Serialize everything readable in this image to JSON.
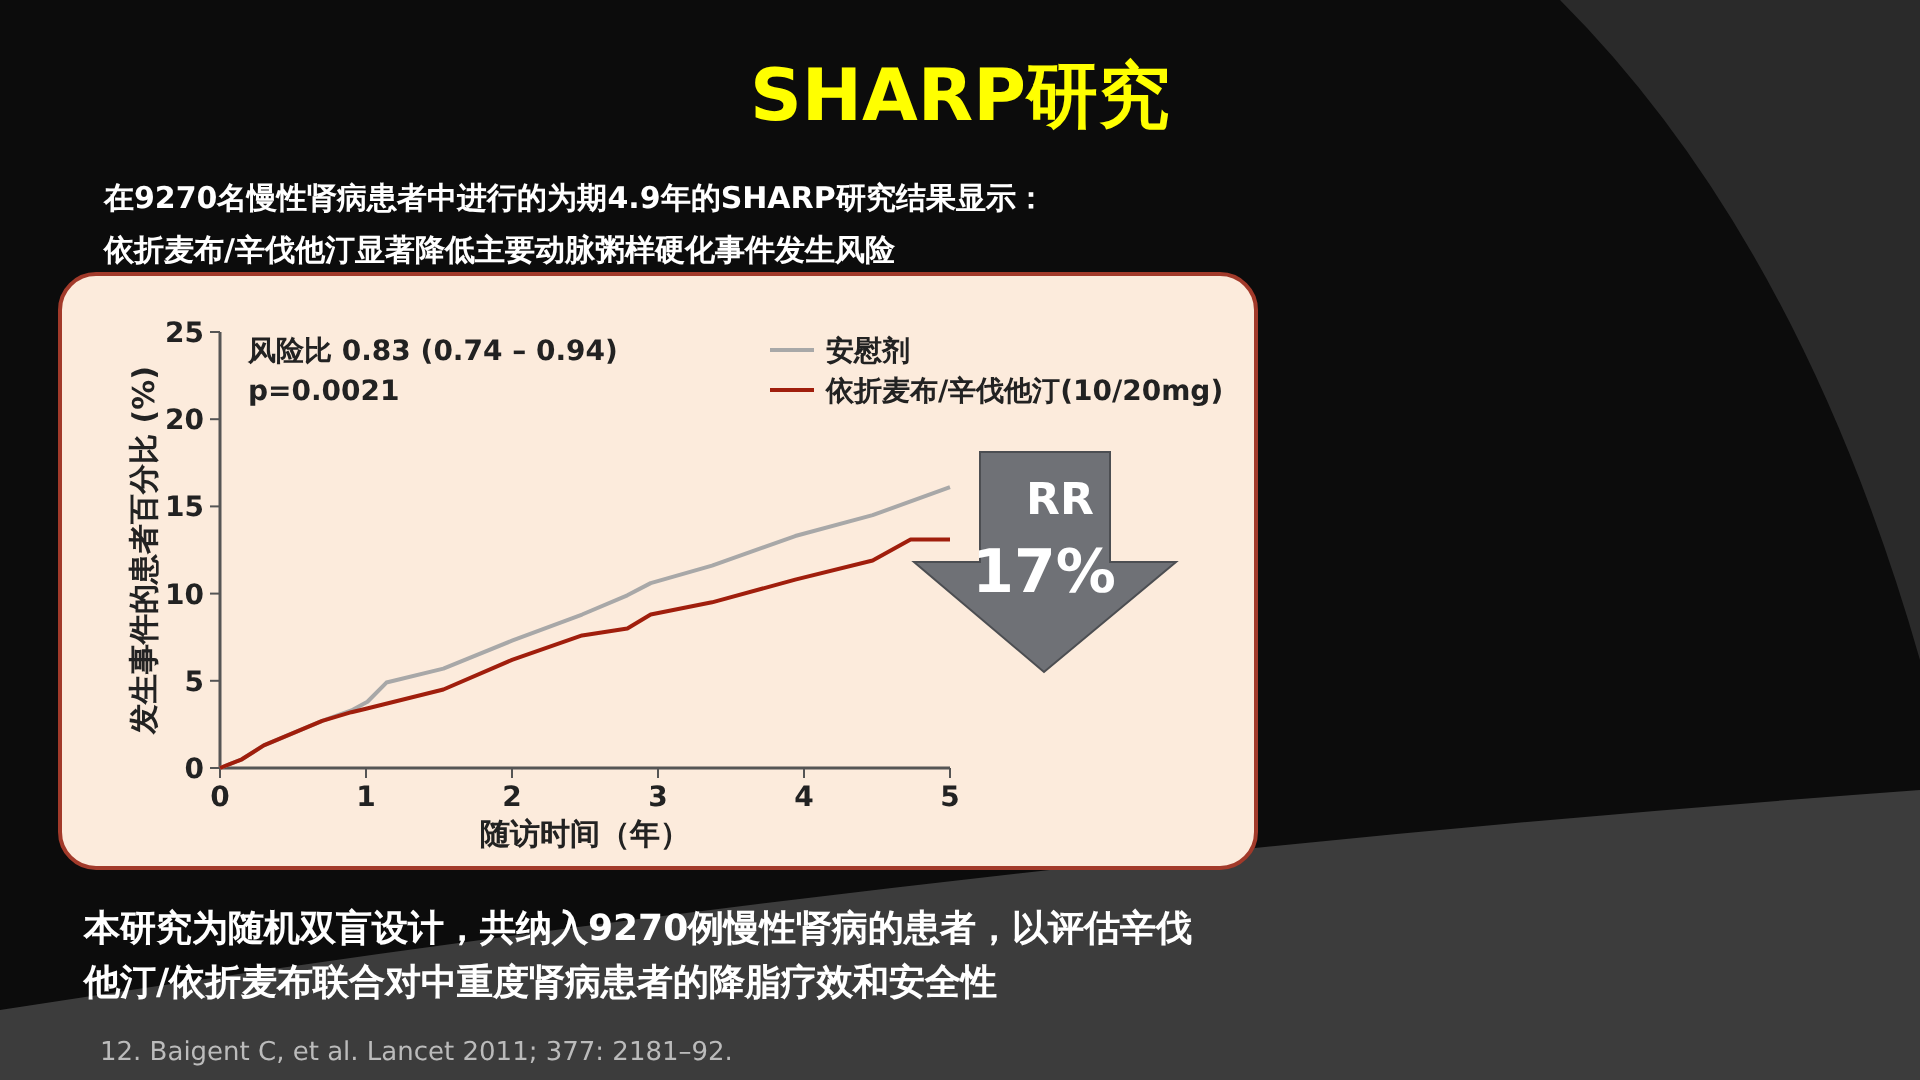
{
  "chart_data": {
    "type": "line",
    "title": "SHARP研究",
    "subtitle": "在9270名慢性肾病患者中进行的为期4.9年的SHARP研究结果显示：",
    "xlabel": "随访时间（年）",
    "ylabel": "发生事件的患者百分比 (%)",
    "xlim": [
      0,
      5
    ],
    "ylim": [
      0,
      25
    ],
    "xticks": [
      0,
      1,
      2,
      3,
      4,
      5
    ],
    "yticks": [
      0,
      5,
      10,
      15,
      20,
      25
    ],
    "legend": "top right",
    "marker": "none",
    "line_style": "solid",
    "grid": false,
    "series": [
      {
        "name": "安慰剂",
        "color": "#a8a8a8",
        "x": [
          0,
          0.15,
          0.3,
          0.5,
          0.7,
          0.9,
          1.01,
          1.14,
          1.53,
          2.0,
          2.48,
          2.79,
          2.95,
          3.37,
          3.94,
          4.47,
          5.0
        ],
        "values": [
          0,
          0.5,
          1.3,
          2.0,
          2.7,
          3.3,
          3.8,
          4.9,
          5.7,
          7.3,
          8.8,
          9.9,
          10.6,
          11.6,
          13.3,
          14.5,
          16.1
        ]
      },
      {
        "name": "依折麦布/辛伐他汀(10/20mg)",
        "color": "#a01e0c",
        "x": [
          0,
          0.15,
          0.3,
          0.5,
          0.7,
          0.9,
          1.0,
          1.53,
          2.0,
          2.48,
          2.79,
          2.95,
          3.37,
          3.94,
          4.47,
          4.73,
          5.0
        ],
        "values": [
          0,
          0.5,
          1.3,
          2.0,
          2.7,
          3.2,
          3.4,
          4.5,
          6.2,
          7.6,
          8.0,
          8.8,
          9.5,
          10.8,
          11.9,
          13.1,
          13.1
        ]
      }
    ],
    "annotations": [
      "依折麦布/辛伐他汀显著降低主要动脉粥样硬化事件发生风险",
      "风险比 0.83 (0.74 – 0.94)",
      "p=0.0021",
      "RR",
      "17%",
      "本研究为随机双盲设计，共纳入9270例慢性肾病的患者，以评估辛伐",
      "他汀/依折麦布联合对中重度肾病患者的降脂疗效和安全性",
      "12. Baigent C, et al. Lancet 2011; 377: 2181–92."
    ]
  }
}
